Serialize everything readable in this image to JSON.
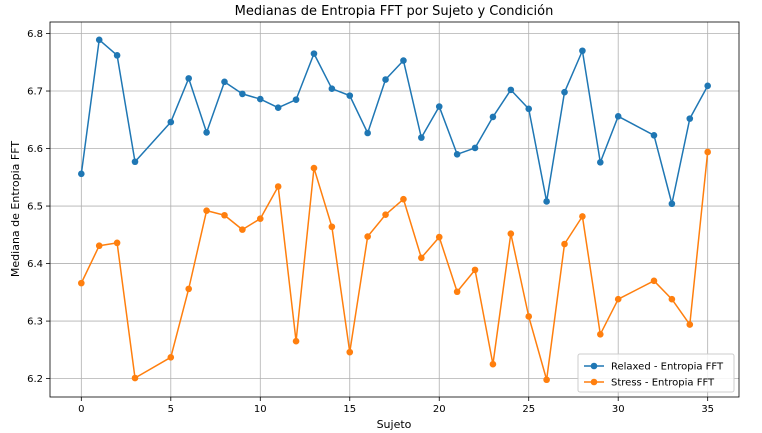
{
  "chart_data": {
    "type": "line",
    "title": "Medianas de Entropia FFT por Sujeto y Condición",
    "xlabel": "Sujeto",
    "ylabel": "Mediana de Entropia FFT",
    "xlim": [
      -1.75,
      36.75
    ],
    "ylim": [
      6.168,
      6.82
    ],
    "xticks": [
      0,
      5,
      10,
      15,
      20,
      25,
      30,
      35
    ],
    "yticks": [
      6.2,
      6.3,
      6.4,
      6.5,
      6.6,
      6.7,
      6.8
    ],
    "grid": true,
    "legend_position": "lower-right",
    "series": [
      {
        "name": "Relaxed - Entropia FFT",
        "color": "#1f77b4",
        "x": [
          0,
          1,
          2,
          3,
          5,
          6,
          7,
          8,
          9,
          10,
          11,
          12,
          13,
          14,
          15,
          16,
          17,
          18,
          19,
          20,
          21,
          22,
          23,
          24,
          25,
          26,
          27,
          28,
          29,
          30,
          32,
          33,
          34,
          35
        ],
        "y": [
          6.556,
          6.789,
          6.762,
          6.577,
          6.646,
          6.722,
          6.628,
          6.716,
          6.695,
          6.686,
          6.671,
          6.685,
          6.765,
          6.704,
          6.692,
          6.627,
          6.72,
          6.753,
          6.619,
          6.673,
          6.59,
          6.601,
          6.655,
          6.702,
          6.669,
          6.508,
          6.698,
          6.77,
          6.576,
          6.656,
          6.623,
          6.504,
          6.652,
          6.709
        ]
      },
      {
        "name": "Stress - Entropia FFT",
        "color": "#ff7f0e",
        "x": [
          0,
          1,
          2,
          3,
          5,
          6,
          7,
          8,
          9,
          10,
          11,
          12,
          13,
          14,
          15,
          16,
          17,
          18,
          19,
          20,
          21,
          22,
          23,
          24,
          25,
          26,
          27,
          28,
          29,
          30,
          32,
          33,
          34,
          35
        ],
        "y": [
          6.366,
          6.431,
          6.436,
          6.201,
          6.237,
          6.356,
          6.492,
          6.484,
          6.459,
          6.478,
          6.534,
          6.265,
          6.566,
          6.464,
          6.246,
          6.447,
          6.485,
          6.512,
          6.41,
          6.446,
          6.351,
          6.389,
          6.225,
          6.452,
          6.308,
          6.198,
          6.434,
          6.482,
          6.277,
          6.338,
          6.37,
          6.338,
          6.294,
          6.594
        ]
      }
    ]
  }
}
